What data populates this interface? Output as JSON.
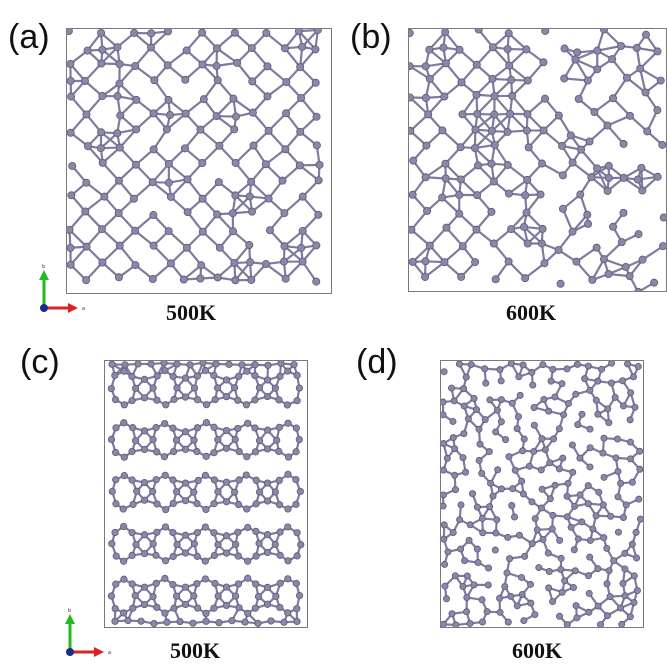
{
  "panels": [
    {
      "id": "a",
      "label": "(a)",
      "temperature": "500K",
      "structure": "ordered-square-network"
    },
    {
      "id": "b",
      "label": "(b)",
      "temperature": "600K",
      "structure": "partially-disordered-network"
    },
    {
      "id": "c",
      "label": "(c)",
      "temperature": "500K",
      "structure": "ordered-ring-network"
    },
    {
      "id": "d",
      "label": "(d)",
      "temperature": "600K",
      "structure": "disordered-ring-network"
    }
  ],
  "axes": {
    "vertical": "b",
    "horizontal": "a"
  },
  "colors": {
    "atom": "#8a88a8",
    "atom_edge": "#5c5a78",
    "bond": "#7e7c9c",
    "cell_border": "#7a7a7a",
    "axis_b": "#22bb22",
    "axis_a": "#dd2222",
    "axis_origin": "#1a2a88"
  }
}
